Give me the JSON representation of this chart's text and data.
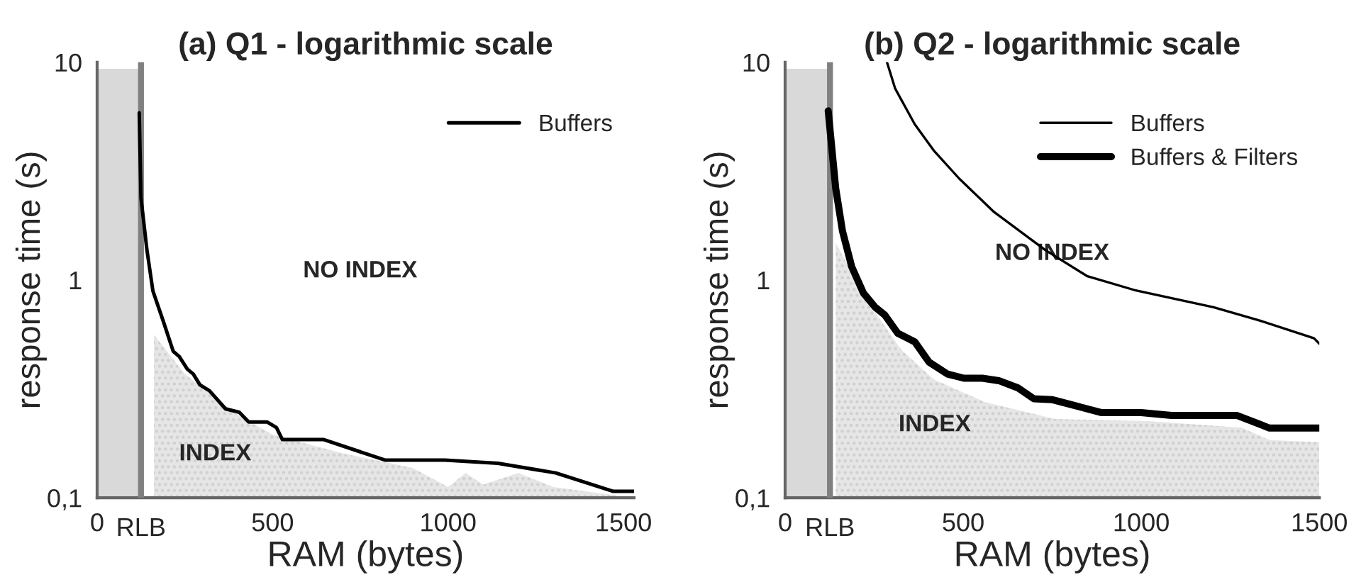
{
  "chart_data": [
    {
      "type": "line",
      "title": "(a) Q1 - logarithmic scale",
      "xlabel": "RAM (bytes)",
      "ylabel": "response time (s)",
      "log": "y",
      "grid": false,
      "legend": "top right",
      "xlim": [
        0,
        1530
      ],
      "xticks": [
        0,
        500,
        1000,
        1500
      ],
      "ylim": [
        0.1,
        10
      ],
      "yticks": [
        {
          "value": 0.1,
          "label": "0,1"
        },
        1,
        10
      ],
      "series": [
        {
          "type": "area",
          "color": "#e6e6e6",
          "x": [
            162,
            250,
            400,
            500,
            700,
            900,
            1000,
            1050,
            1100,
            1200,
            1300,
            1530
          ],
          "values": [
            0.56,
            0.37,
            0.24,
            0.195,
            0.16,
            0.137,
            0.112,
            0.13,
            0.115,
            0.13,
            0.112,
            0.1
          ]
        },
        {
          "name": "Buffers",
          "color": "#000000",
          "x": [
            120,
            125,
            142,
            159,
            188,
            217,
            234,
            257,
            274,
            293,
            320,
            366,
            405,
            432,
            484,
            511,
            528,
            646,
            820,
            991,
            1142,
            1307,
            1471,
            1530
          ],
          "values": [
            5.85,
            2.38,
            1.37,
            0.89,
            0.65,
            0.47,
            0.445,
            0.39,
            0.37,
            0.33,
            0.31,
            0.256,
            0.247,
            0.223,
            0.223,
            0.21,
            0.185,
            0.185,
            0.149,
            0.149,
            0.144,
            0.13,
            0.107,
            0.107
          ]
        }
      ],
      "bands": [
        {
          "axis": "x",
          "from": 0,
          "to": 125,
          "color": "#d9d9d9"
        }
      ],
      "ref_lines": [
        {
          "axis": "x",
          "value": 125,
          "label": "RLB",
          "color": "#808080"
        }
      ],
      "annotations": [
        "NO INDEX",
        "INDEX"
      ]
    },
    {
      "type": "line",
      "title": "(b) Q2 - logarithmic scale",
      "xlabel": "RAM (bytes)",
      "ylabel": "response time (s)",
      "log": "y",
      "grid": false,
      "legend": "top right",
      "xlim": [
        0,
        1500
      ],
      "xticks": [
        0,
        500,
        1000,
        1500
      ],
      "ylim": [
        0.1,
        10
      ],
      "yticks": [
        {
          "value": 0.1,
          "label": "0,1"
        },
        1,
        10
      ],
      "series": [
        {
          "type": "area",
          "color": "#e6e6e6",
          "x": [
            142,
            233,
            325,
            417,
            561,
            758,
            1020,
            1282,
            1360,
            1500
          ],
          "values": [
            1.48,
            0.79,
            0.48,
            0.35,
            0.275,
            0.23,
            0.225,
            0.21,
            0.184,
            0.18
          ]
        },
        {
          "name": "Buffers",
          "color": "#000000",
          "x": [
            286,
            309,
            364,
            417,
            489,
            587,
            731,
            849,
            980,
            1203,
            1334,
            1485,
            1500
          ],
          "values": [
            10,
            7.57,
            5.19,
            3.94,
            2.92,
            2.05,
            1.37,
            1.04,
            0.9,
            0.75,
            0.65,
            0.54,
            0.51
          ]
        },
        {
          "name": "Buffers & Filters",
          "color": "#000000",
          "x": [
            121,
            142,
            161,
            187,
            220,
            253,
            280,
            316,
            364,
            404,
            456,
            502,
            554,
            600,
            653,
            698,
            751,
            810,
            889,
            1000,
            1085,
            1268,
            1360,
            1500
          ],
          "values": [
            5.98,
            2.64,
            1.68,
            1.15,
            0.87,
            0.75,
            0.69,
            0.57,
            0.52,
            0.42,
            0.37,
            0.354,
            0.354,
            0.345,
            0.32,
            0.285,
            0.282,
            0.266,
            0.246,
            0.246,
            0.239,
            0.239,
            0.209,
            0.209
          ]
        }
      ],
      "bands": [
        {
          "axis": "x",
          "from": 0,
          "to": 126,
          "color": "#d9d9d9"
        }
      ],
      "ref_lines": [
        {
          "axis": "x",
          "value": 126,
          "label": "RLB",
          "color": "#808080"
        }
      ],
      "annotations": [
        "NO INDEX",
        "INDEX"
      ]
    }
  ]
}
